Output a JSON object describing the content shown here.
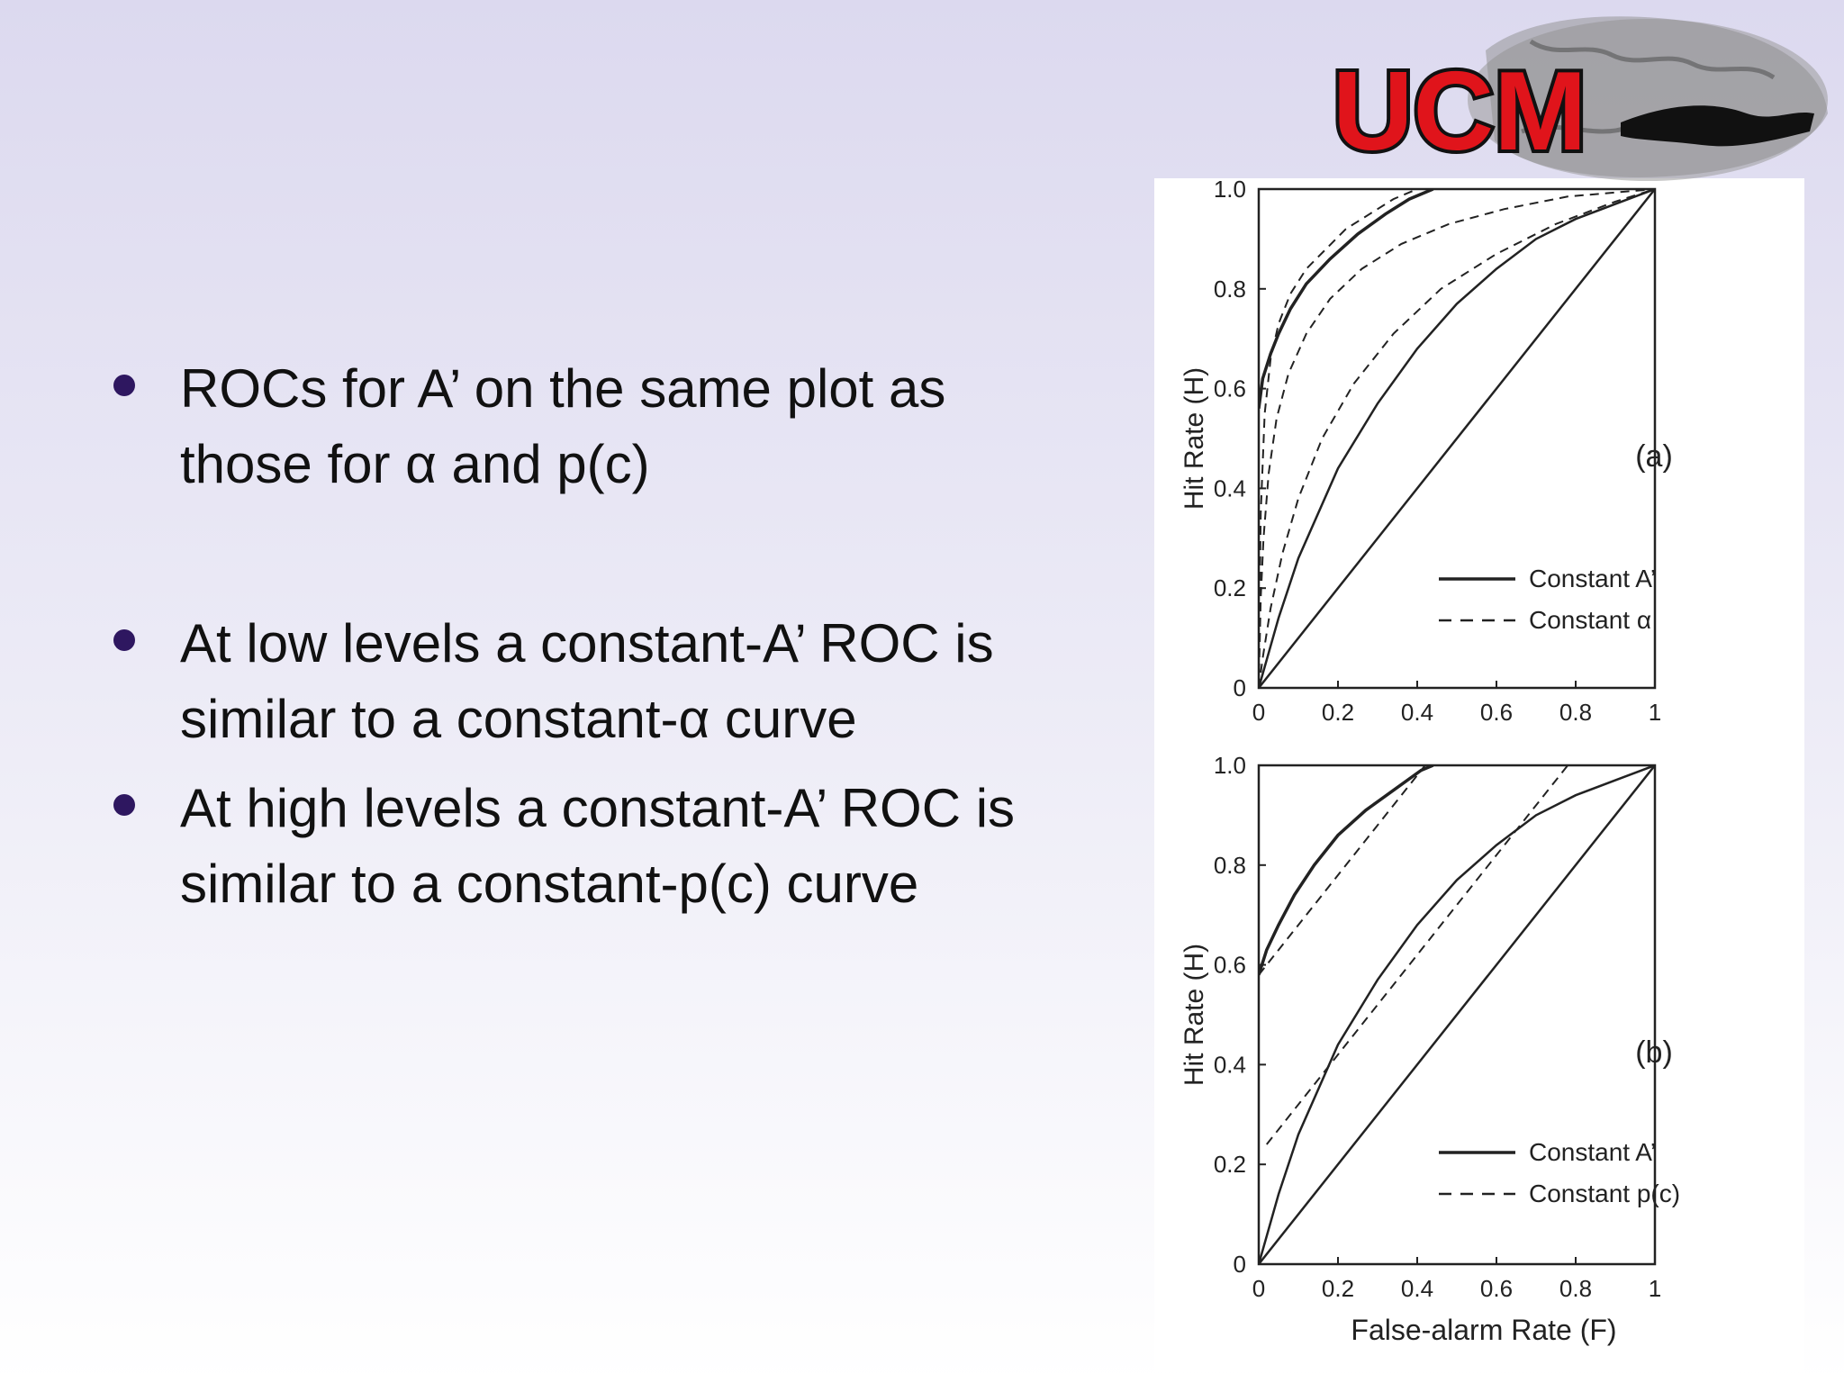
{
  "slide": {
    "bullets": [
      {
        "line1": "ROCs for A’ on the same plot as",
        "line2": "those for α and p(c)"
      },
      {
        "line1": "At low levels a constant-A’ ROC is",
        "line2": "similar to a constant-α curve"
      },
      {
        "line1": "At high levels a constant-A’ ROC is",
        "line2": "similar to a constant-p(c) curve"
      }
    ],
    "logo_text": "UCM",
    "bullet_color": "#2e1760",
    "logo_color": "#e0141b"
  },
  "chart_data": [
    {
      "type": "line",
      "panel_label": "(a)",
      "ylabel": "Hit Rate (H)",
      "xlabel": "",
      "xlim": [
        0,
        1
      ],
      "ylim": [
        0,
        1
      ],
      "x_ticks": [
        "0",
        "0.2",
        "0.4",
        "0.6",
        "0.8",
        "1"
      ],
      "y_ticks": [
        "0",
        "0.2",
        "0.4",
        "0.6",
        "0.8",
        "1.0"
      ],
      "series": [
        {
          "name": "Constant A’",
          "style": "solid",
          "x": [
            0,
            0.01,
            0.03,
            0.05,
            0.08,
            0.12,
            0.18,
            0.25,
            0.32,
            0.38,
            0.44
          ],
          "y": [
            0.56,
            0.62,
            0.67,
            0.71,
            0.76,
            0.81,
            0.86,
            0.91,
            0.95,
            0.98,
            1.0
          ]
        },
        {
          "name": "",
          "style": "solid",
          "x": [
            0,
            0.05,
            0.1,
            0.2,
            0.3,
            0.4,
            0.5,
            0.6,
            0.7,
            0.8,
            0.9,
            1
          ],
          "y": [
            0,
            0.14,
            0.26,
            0.44,
            0.57,
            0.68,
            0.77,
            0.84,
            0.9,
            0.94,
            0.97,
            1.0
          ]
        },
        {
          "name": "",
          "style": "solid",
          "x": [
            0,
            1
          ],
          "y": [
            0,
            1
          ]
        },
        {
          "name": "Constant α",
          "style": "dashed",
          "x": [
            0,
            0.005,
            0.015,
            0.03,
            0.05,
            0.08,
            0.12,
            0.17,
            0.22,
            0.28,
            0.34,
            0.4
          ],
          "y": [
            0,
            0.35,
            0.55,
            0.66,
            0.73,
            0.79,
            0.84,
            0.88,
            0.92,
            0.95,
            0.98,
            1.0
          ]
        },
        {
          "name": "",
          "style": "dashed",
          "x": [
            0,
            0.005,
            0.012,
            0.025,
            0.045,
            0.075,
            0.12,
            0.18,
            0.26,
            0.36,
            0.48,
            0.62,
            0.78,
            1
          ],
          "y": [
            0,
            0.18,
            0.3,
            0.43,
            0.54,
            0.63,
            0.71,
            0.78,
            0.84,
            0.89,
            0.93,
            0.96,
            0.985,
            1.0
          ]
        },
        {
          "name": "",
          "style": "dashed",
          "x": [
            0,
            0.01,
            0.03,
            0.06,
            0.1,
            0.16,
            0.24,
            0.34,
            0.46,
            0.6,
            0.75,
            0.9,
            1
          ],
          "y": [
            0,
            0.06,
            0.16,
            0.27,
            0.38,
            0.5,
            0.61,
            0.71,
            0.8,
            0.87,
            0.93,
            0.975,
            1.0
          ]
        }
      ]
    },
    {
      "type": "line",
      "panel_label": "(b)",
      "ylabel": "Hit Rate (H)",
      "xlabel": "False-alarm Rate (F)",
      "xlim": [
        0,
        1
      ],
      "ylim": [
        0,
        1
      ],
      "x_ticks": [
        "0",
        "0.2",
        "0.4",
        "0.6",
        "0.8",
        "1"
      ],
      "y_ticks": [
        "0",
        "0.2",
        "0.4",
        "0.6",
        "0.8",
        "1.0"
      ],
      "series": [
        {
          "name": "Constant A’",
          "style": "solid",
          "x": [
            0,
            0.02,
            0.05,
            0.09,
            0.14,
            0.2,
            0.27,
            0.34,
            0.41,
            0.44
          ],
          "y": [
            0.58,
            0.63,
            0.68,
            0.74,
            0.8,
            0.86,
            0.91,
            0.95,
            0.99,
            1.0
          ]
        },
        {
          "name": "",
          "style": "solid",
          "x": [
            0,
            0.05,
            0.1,
            0.2,
            0.3,
            0.4,
            0.5,
            0.6,
            0.7,
            0.8,
            0.9,
            1
          ],
          "y": [
            0,
            0.14,
            0.26,
            0.44,
            0.57,
            0.68,
            0.77,
            0.84,
            0.9,
            0.94,
            0.97,
            1.0
          ]
        },
        {
          "name": "",
          "style": "solid",
          "x": [
            0,
            1
          ],
          "y": [
            0,
            1
          ]
        },
        {
          "name": "Constant p(c)",
          "style": "dashed",
          "x": [
            0,
            0.42
          ],
          "y": [
            0.58,
            1.0
          ]
        },
        {
          "name": "",
          "style": "dashed",
          "x": [
            0.02,
            0.78
          ],
          "y": [
            0.24,
            1.0
          ]
        }
      ]
    }
  ]
}
